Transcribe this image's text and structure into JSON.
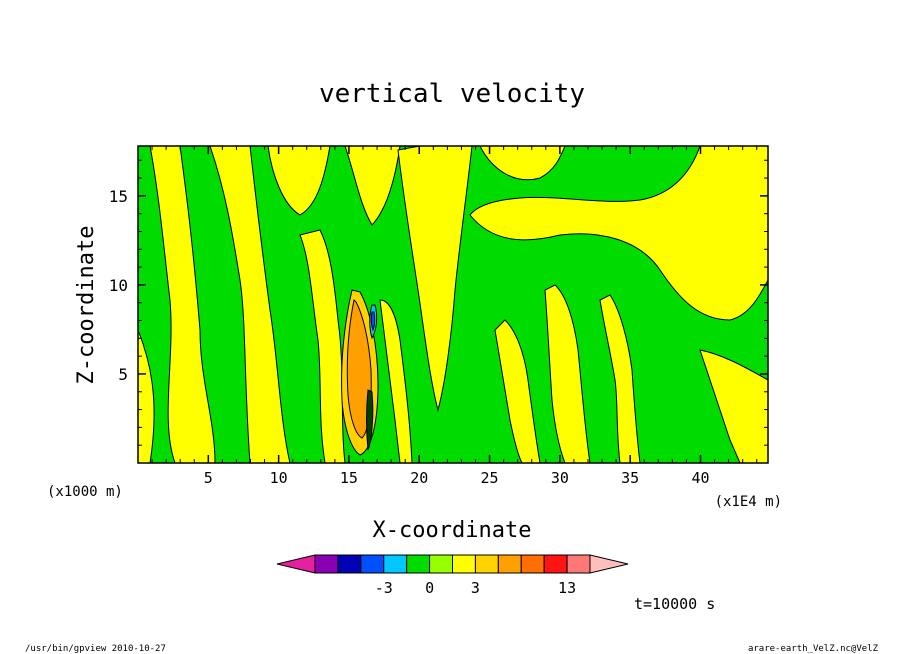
{
  "chart_data": {
    "type": "heatmap",
    "title": "vertical velocity",
    "xlabel": "X-coordinate",
    "ylabel": "Z-coordinate",
    "x_unit_label": "(x1000 m)",
    "x_unit_label_right": "(x1E4 m)",
    "time_label": "t=10000 s",
    "xlim": [
      0,
      44.8
    ],
    "ylim": [
      0,
      17.8
    ],
    "x_ticks": [
      5,
      10,
      15,
      20,
      25,
      30,
      35,
      40
    ],
    "y_ticks": [
      5,
      10,
      15
    ],
    "colorbar": {
      "tick_labels": [
        "-3",
        "0",
        "3",
        "13"
      ],
      "tick_values": [
        -3,
        0,
        3,
        13
      ],
      "colors": [
        "#e61ea0",
        "#8a00b4",
        "#0000b4",
        "#0050ff",
        "#00c8ff",
        "#00dc00",
        "#96ff00",
        "#ffff00",
        "#ffd200",
        "#ffa000",
        "#ff6e00",
        "#ff1414",
        "#ff7878",
        "#ffbebe"
      ]
    }
  },
  "footer": {
    "left": "/usr/bin/gpview   2010-10-27",
    "right": "arare-earth_VelZ.nc@VelZ"
  }
}
